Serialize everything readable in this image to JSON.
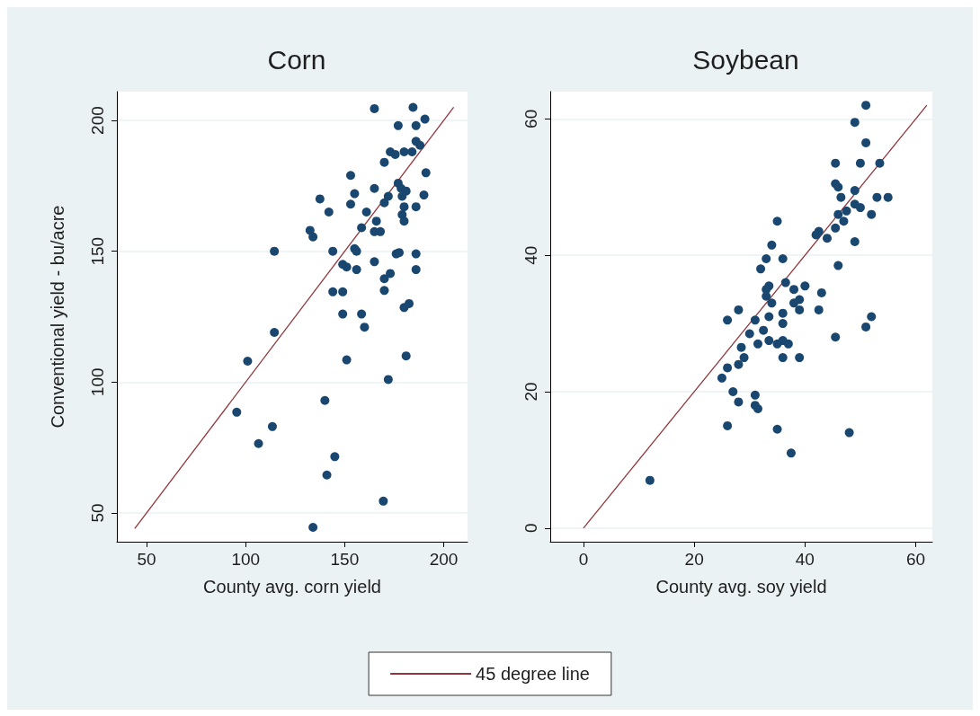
{
  "chart_data": [
    {
      "type": "scatter",
      "title": "Corn",
      "xlabel": "County avg. corn yield",
      "ylabel": "Conventional yield - bu/acre",
      "xlim": [
        35,
        212
      ],
      "ylim": [
        39,
        211
      ],
      "xticks": [
        50,
        100,
        150,
        200
      ],
      "yticks": [
        50,
        100,
        150,
        200
      ],
      "grid": "y",
      "legend": "bottom",
      "series": [
        {
          "marker": "circle",
          "color": "#1a476f",
          "x": [
            165,
            184.5,
            190.5,
            177,
            186,
            186,
            188,
            173,
            175.5,
            180,
            184,
            170,
            153,
            191,
            165,
            177,
            178.5,
            181,
            155,
            190,
            137.5,
            179,
            172,
            170,
            153,
            180,
            186,
            142,
            161,
            179,
            180,
            166,
            158.5,
            165,
            168,
            132.5,
            134,
            114.5,
            144,
            155,
            156,
            176,
            177.5,
            186,
            165,
            149,
            151,
            156,
            186,
            173,
            170,
            170,
            144,
            149,
            180,
            182.5,
            149,
            158.5,
            160,
            114.5,
            101,
            151,
            181,
            172,
            140,
            95.5,
            113.5,
            106.5,
            145,
            141,
            169.5,
            134
          ],
          "values": [
            204.5,
            205,
            200.5,
            198,
            198,
            192,
            190.5,
            188,
            187,
            188,
            188,
            184,
            179,
            180,
            174,
            176,
            174,
            173,
            172,
            171.5,
            170,
            171,
            171,
            168.5,
            168,
            167,
            167,
            165,
            165,
            164,
            161.5,
            161.5,
            159,
            157.5,
            157.5,
            158,
            155.5,
            150,
            150,
            151,
            150,
            149,
            149.5,
            149,
            146,
            145,
            144,
            143,
            143,
            141.5,
            139.5,
            135,
            134.5,
            134.5,
            128.5,
            130,
            126,
            126,
            121,
            119,
            108,
            108.5,
            110,
            101,
            93,
            88.5,
            83,
            76.5,
            71.5,
            64.5,
            54.5,
            44.5
          ]
        },
        {
          "type": "line",
          "marker": "none",
          "name": "45 degree line",
          "color": "#90353b",
          "line_style": "solid",
          "x": [
            44,
            205
          ],
          "values": [
            44,
            205
          ]
        }
      ]
    },
    {
      "type": "scatter",
      "title": "Soybean",
      "xlabel": "County avg. soy yield",
      "xlim": [
        -6,
        63
      ],
      "ylim": [
        -2,
        64
      ],
      "xticks": [
        0,
        20,
        40,
        60
      ],
      "yticks": [
        0,
        20,
        40,
        60
      ],
      "grid": "y",
      "series": [
        {
          "marker": "circle",
          "color": "#1a476f",
          "x": [
            51,
            49,
            51,
            45.5,
            50,
            53.5,
            45.5,
            46,
            46.5,
            49,
            53,
            55,
            49,
            50,
            47.5,
            46,
            52,
            47,
            45.5,
            35,
            42.5,
            42,
            44,
            49,
            34,
            33,
            36,
            32,
            46,
            33.5,
            36.5,
            40,
            33,
            38,
            43,
            33,
            39,
            34,
            38,
            28,
            42.5,
            36,
            39,
            26,
            31,
            33.5,
            36,
            52,
            51,
            30,
            32.5,
            45.5,
            28.5,
            31.5,
            33.5,
            35,
            36,
            37,
            29,
            28,
            26,
            36,
            39,
            25,
            27,
            28,
            31,
            31,
            31.5,
            26,
            35,
            48,
            37.5,
            12
          ],
          "values": [
            62,
            59.5,
            56.5,
            53.5,
            53.5,
            53.5,
            50.5,
            50,
            48.5,
            49.5,
            48.5,
            48.5,
            47.5,
            47,
            46.5,
            46,
            46,
            45,
            44,
            45,
            43.5,
            43,
            42.5,
            42,
            41.5,
            39.5,
            39.5,
            38,
            38.5,
            35.5,
            36,
            35.5,
            35,
            35,
            34.5,
            34,
            33.5,
            33,
            33,
            32,
            32,
            31.5,
            32,
            30.5,
            30.5,
            31,
            30,
            31,
            29.5,
            28.5,
            29,
            28,
            26.5,
            27,
            27.5,
            27,
            27.5,
            27,
            25,
            24,
            23.5,
            25,
            25,
            22,
            20,
            18.5,
            19.5,
            18,
            17.5,
            15,
            14.5,
            14,
            11,
            7
          ]
        },
        {
          "type": "line",
          "marker": "none",
          "color": "#90353b",
          "line_style": "solid",
          "x": [
            0,
            62
          ],
          "values": [
            0,
            62
          ]
        }
      ]
    }
  ]
}
